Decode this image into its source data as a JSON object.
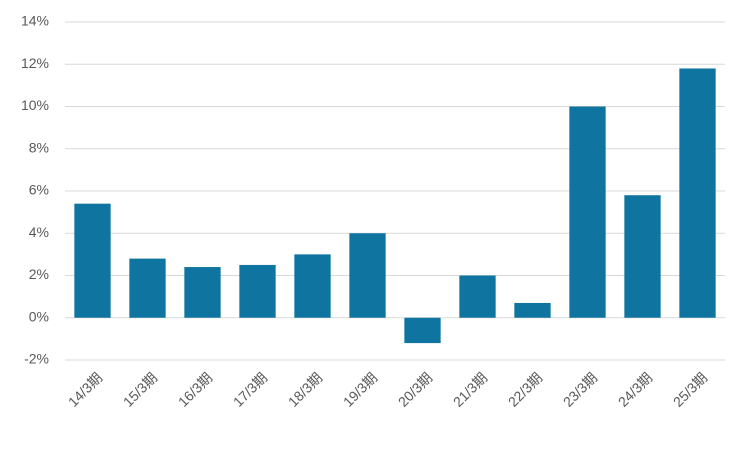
{
  "chart_data": {
    "type": "bar",
    "categories": [
      "14/3期",
      "15/3期",
      "16/3期",
      "17/3期",
      "18/3期",
      "19/3期",
      "20/3期",
      "21/3期",
      "22/3期",
      "23/3期",
      "24/3期",
      "25/3期"
    ],
    "values": [
      5.4,
      2.8,
      2.4,
      2.5,
      3.0,
      4.0,
      -1.2,
      2.0,
      0.7,
      10.0,
      5.8,
      11.8
    ],
    "color": "#0f75a0",
    "ylim": [
      -2,
      14
    ],
    "yticks": [
      {
        "value": -2,
        "label": "-2%"
      },
      {
        "value": 0,
        "label": "0%"
      },
      {
        "value": 2,
        "label": "2%"
      },
      {
        "value": 4,
        "label": "4%"
      },
      {
        "value": 6,
        "label": "6%"
      },
      {
        "value": 8,
        "label": "8%"
      },
      {
        "value": 10,
        "label": "10%"
      },
      {
        "value": 12,
        "label": "12%"
      },
      {
        "value": 14,
        "label": "14%"
      }
    ],
    "grid": true
  }
}
